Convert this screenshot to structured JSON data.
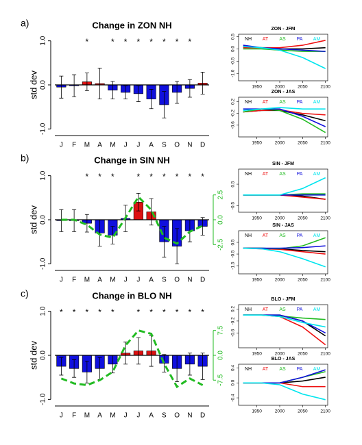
{
  "chart_data": [
    {
      "type": "bar",
      "panel": "a)",
      "title": "Change in ZON NH",
      "ylabel": "std dev",
      "categories": [
        "J",
        "F",
        "M",
        "A",
        "M",
        "J",
        "J",
        "A",
        "S",
        "O",
        "N",
        "D"
      ],
      "values": [
        -0.05,
        -0.02,
        0.07,
        0.03,
        -0.12,
        -0.17,
        -0.2,
        -0.32,
        -0.45,
        -0.17,
        -0.08,
        0.04
      ],
      "errors": [
        0.25,
        0.25,
        0.2,
        0.35,
        0.2,
        0.15,
        0.18,
        0.22,
        0.3,
        0.25,
        0.2,
        0.25
      ],
      "colors": [
        "#1010dd",
        "#1010dd",
        "#dd1111",
        "#dd1111",
        "#1010dd",
        "#1010dd",
        "#1010dd",
        "#1010dd",
        "#1010dd",
        "#1010dd",
        "#1010dd",
        "#dd1111"
      ],
      "annotations": [
        null,
        null,
        "*",
        null,
        "*",
        "*",
        "*",
        "*",
        "*",
        "*",
        "*",
        null
      ],
      "ylim": [
        -1.15,
        1.15
      ],
      "yticks": [
        {
          "value": 1,
          "label": "1.0"
        },
        {
          "value": 0,
          "label": "0.0"
        },
        {
          "value": -1,
          "label": "-1.0"
        }
      ]
    },
    {
      "type": "lines",
      "title": "ZON - JFM",
      "x": [
        1920,
        1960,
        2000,
        2050,
        2100
      ],
      "xlim": [
        1910,
        2105
      ],
      "xticks": [
        1950,
        2000,
        2050,
        2100
      ],
      "ylim": [
        -1.3,
        0.6
      ],
      "yticks": [
        {
          "value": 0.5,
          "label": "0.5"
        },
        {
          "value": 0,
          "label": "0.0"
        },
        {
          "value": -0.5,
          "label": "-0.5"
        },
        {
          "value": -1,
          "label": "-1.0"
        }
      ],
      "series": [
        {
          "name": "NH",
          "color": "#000000",
          "values": [
            0.1,
            0.05,
            0,
            0,
            0.05
          ]
        },
        {
          "name": "AT",
          "color": "#ee1111",
          "values": [
            0.05,
            0.05,
            0.05,
            0.15,
            0.35
          ]
        },
        {
          "name": "AS",
          "color": "#22bb22",
          "values": [
            0,
            0,
            -0.05,
            -0.1,
            -0.1
          ]
        },
        {
          "name": "PA",
          "color": "#1111dd",
          "values": [
            0.15,
            0.05,
            0,
            -0.05,
            -0.1
          ]
        },
        {
          "name": "AM",
          "color": "#00e5ee",
          "values": [
            0.1,
            0.05,
            -0.05,
            -0.35,
            -0.8
          ]
        }
      ]
    },
    {
      "type": "lines",
      "title": "ZON - JAS",
      "x": [
        1920,
        1960,
        2000,
        2050,
        2100
      ],
      "xlim": [
        1910,
        2105
      ],
      "xticks": [
        1950,
        2000,
        2050,
        2100
      ],
      "ylim": [
        -1.0,
        0.35
      ],
      "yticks": [
        {
          "value": 0.2,
          "label": "0.2"
        },
        {
          "value": -0.2,
          "label": "-0.2"
        },
        {
          "value": -0.6,
          "label": "-0.6"
        }
      ],
      "series": [
        {
          "name": "NH",
          "color": "#000000",
          "values": [
            -0.15,
            -0.1,
            -0.1,
            -0.25,
            -0.45
          ]
        },
        {
          "name": "AT",
          "color": "#ee1111",
          "values": [
            -0.15,
            -0.1,
            -0.08,
            -0.2,
            -0.25
          ]
        },
        {
          "name": "AS",
          "color": "#22bb22",
          "values": [
            -0.15,
            -0.05,
            -0.1,
            -0.4,
            -0.85
          ]
        },
        {
          "name": "PA",
          "color": "#1111dd",
          "values": [
            -0.05,
            -0.05,
            -0.05,
            -0.3,
            -0.65
          ]
        },
        {
          "name": "AM",
          "color": "#00e5ee",
          "values": [
            -0.1,
            -0.05,
            0,
            -0.05,
            -0.05
          ]
        }
      ]
    },
    {
      "type": "bar",
      "panel": "b)",
      "title": "Change in SIN NH",
      "ylabel": "std dev",
      "categories": [
        "J",
        "F",
        "M",
        "A",
        "M",
        "J",
        "J",
        "A",
        "S",
        "O",
        "N",
        "D"
      ],
      "values": [
        -0.02,
        -0.02,
        -0.08,
        -0.3,
        -0.35,
        0.03,
        0.4,
        0.18,
        -0.5,
        -0.6,
        -0.25,
        -0.15
      ],
      "errors": [
        0.25,
        0.25,
        0.2,
        0.3,
        0.2,
        0.3,
        0.2,
        0.3,
        0.35,
        0.4,
        0.25,
        0.2
      ],
      "colors": [
        "#1010dd",
        "#1010dd",
        "#1010dd",
        "#1010dd",
        "#1010dd",
        "#1010dd",
        "#dd1111",
        "#dd1111",
        "#1010dd",
        "#1010dd",
        "#1010dd",
        "#1010dd"
      ],
      "annotations": [
        null,
        null,
        "*",
        "*",
        "*",
        null,
        "*",
        "*",
        "*",
        "*",
        "*",
        "*"
      ],
      "ylim": [
        -1.15,
        1.15
      ],
      "yticks": [
        {
          "value": 1,
          "label": "1.0"
        },
        {
          "value": 0,
          "label": "0.0"
        },
        {
          "value": -1,
          "label": "-1.0"
        }
      ],
      "line": {
        "color": "#22bb22",
        "axis": "y2",
        "values": [
          0,
          0,
          -0.5,
          -1.5,
          -1.8,
          0.2,
          2.3,
          1.0,
          -1.8,
          -2.4,
          -1.2,
          -0.6
        ]
      },
      "y2lim": [
        -5.1,
        5.1
      ],
      "y2ticks": [
        {
          "value": 2.5,
          "label": "2.5"
        },
        {
          "value": 0,
          "label": "0.0"
        },
        {
          "value": -2.5,
          "label": "-2.5"
        }
      ]
    },
    {
      "type": "lines",
      "title": "SIN - JFM",
      "x": [
        1920,
        1960,
        2000,
        2050,
        2100
      ],
      "xlim": [
        1910,
        2105
      ],
      "xticks": [
        1950,
        2000,
        2050,
        2100
      ],
      "ylim": [
        -0.8,
        1.2
      ],
      "yticks": [
        {
          "value": 0.5,
          "label": "0.5"
        },
        {
          "value": -0.5,
          "label": "-0.5"
        }
      ],
      "series": [
        {
          "name": "NH",
          "color": "#000000",
          "values": [
            0,
            0,
            0,
            -0.05,
            -0.2
          ]
        },
        {
          "name": "AT",
          "color": "#ee1111",
          "values": [
            0,
            0,
            0,
            -0.1,
            -0.2
          ]
        },
        {
          "name": "AS",
          "color": "#22bb22",
          "values": [
            0,
            0,
            0,
            0.05,
            0.05
          ]
        },
        {
          "name": "PA",
          "color": "#1111dd",
          "values": [
            0,
            0,
            0,
            0,
            0
          ]
        },
        {
          "name": "AM",
          "color": "#00e5ee",
          "values": [
            0,
            0,
            0,
            0.3,
            0.8
          ]
        }
      ]
    },
    {
      "type": "lines",
      "title": "SIN - JAS",
      "x": [
        1920,
        1960,
        2000,
        2050,
        2100
      ],
      "xlim": [
        1910,
        2105
      ],
      "xticks": [
        1950,
        2000,
        2050,
        2100
      ],
      "ylim": [
        -2.2,
        1.5
      ],
      "yticks": [
        {
          "value": 0.5,
          "label": "0.5"
        },
        {
          "value": -0.5,
          "label": "-0.5"
        },
        {
          "value": -1.5,
          "label": "-1.5"
        }
      ],
      "series": [
        {
          "name": "NH",
          "color": "#000000",
          "values": [
            0,
            0,
            -0.05,
            -0.2,
            -0.3
          ]
        },
        {
          "name": "AT",
          "color": "#ee1111",
          "values": [
            0,
            -0.05,
            -0.1,
            -0.3,
            -0.5
          ]
        },
        {
          "name": "AS",
          "color": "#22bb22",
          "values": [
            0,
            0,
            -0.05,
            0.2,
            0.9
          ]
        },
        {
          "name": "PA",
          "color": "#1111dd",
          "values": [
            0,
            0,
            0,
            0.05,
            0.2
          ]
        },
        {
          "name": "AM",
          "color": "#00e5ee",
          "values": [
            0,
            -0.05,
            -0.3,
            -0.9,
            -1.6
          ]
        }
      ]
    },
    {
      "type": "bar",
      "panel": "c)",
      "title": "Change in BLO NH",
      "ylabel": "std dev",
      "categories": [
        "J",
        "F",
        "M",
        "A",
        "M",
        "J",
        "J",
        "A",
        "S",
        "O",
        "N",
        "D"
      ],
      "values": [
        -0.25,
        -0.3,
        -0.38,
        -0.3,
        -0.2,
        0.05,
        0.1,
        0.1,
        -0.18,
        -0.3,
        -0.2,
        -0.25
      ],
      "errors": [
        0.2,
        0.2,
        0.25,
        0.25,
        0.2,
        0.25,
        0.3,
        0.35,
        0.2,
        0.3,
        0.25,
        0.3
      ],
      "colors": [
        "#1010dd",
        "#1010dd",
        "#1010dd",
        "#1010dd",
        "#1010dd",
        "#dd1111",
        "#dd1111",
        "#dd1111",
        "#1010dd",
        "#1010dd",
        "#1010dd",
        "#1010dd"
      ],
      "annotations": [
        "*",
        "*",
        "*",
        "*",
        "*",
        null,
        "*",
        "*",
        "*",
        "*",
        "*",
        "*"
      ],
      "ylim": [
        -1.15,
        1.15
      ],
      "yticks": [
        {
          "value": 1,
          "label": "1.0"
        },
        {
          "value": 0,
          "label": "0.0"
        },
        {
          "value": -1,
          "label": "-1.0"
        }
      ],
      "line": {
        "color": "#22bb22",
        "axis": "y2",
        "values": [
          -7,
          -8.5,
          -9,
          -7.5,
          -5,
          3,
          7.5,
          6.5,
          -2.5,
          -9.5,
          -7,
          -9
        ]
      },
      "y2lim": [
        -15.3,
        15.3
      ],
      "y2ticks": [
        {
          "value": 7.5,
          "label": "7.5"
        },
        {
          "value": 0,
          "label": "0.0"
        },
        {
          "value": -7.5,
          "label": "-7.5"
        }
      ]
    },
    {
      "type": "lines",
      "title": "BLO - JFM",
      "x": [
        1920,
        1960,
        2000,
        2050,
        2100
      ],
      "xlim": [
        1910,
        2105
      ],
      "xticks": [
        1950,
        2000,
        2050,
        2100
      ],
      "ylim": [
        -1.1,
        0.35
      ],
      "yticks": [
        {
          "value": 0.2,
          "label": "0.2"
        },
        {
          "value": -0.2,
          "label": "-0.2"
        },
        {
          "value": -0.6,
          "label": "-0.6"
        }
      ],
      "series": [
        {
          "name": "NH",
          "color": "#000000",
          "values": [
            0,
            0,
            0,
            -0.2,
            -0.7
          ]
        },
        {
          "name": "AT",
          "color": "#ee1111",
          "values": [
            0,
            0,
            -0.05,
            -0.4,
            -1.0
          ]
        },
        {
          "name": "AS",
          "color": "#22bb22",
          "values": [
            0,
            0,
            -0.03,
            -0.1,
            -0.15
          ]
        },
        {
          "name": "PA",
          "color": "#1111dd",
          "values": [
            0,
            0,
            0,
            -0.2,
            -0.6
          ]
        },
        {
          "name": "AM",
          "color": "#00e5ee",
          "values": [
            0,
            0,
            -0.05,
            -0.25,
            -0.4
          ]
        }
      ]
    },
    {
      "type": "lines",
      "title": "BLO - JAS",
      "x": [
        1920,
        1960,
        2000,
        2050,
        2100
      ],
      "xlim": [
        1910,
        2105
      ],
      "xticks": [
        1950,
        2000,
        2050,
        2100
      ],
      "ylim": [
        -0.6,
        0.5
      ],
      "yticks": [
        {
          "value": 0.4,
          "label": "0.4"
        },
        {
          "value": 0,
          "label": "0.0"
        },
        {
          "value": -0.4,
          "label": "-0.4"
        }
      ],
      "series": [
        {
          "name": "NH",
          "color": "#000000",
          "values": [
            0,
            0,
            0,
            0.05,
            0.15
          ]
        },
        {
          "name": "AT",
          "color": "#ee1111",
          "values": [
            0,
            0,
            0,
            -0.1,
            -0.1
          ]
        },
        {
          "name": "AS",
          "color": "#22bb22",
          "values": [
            0,
            0,
            0,
            0.15,
            0.3
          ]
        },
        {
          "name": "PA",
          "color": "#1111dd",
          "values": [
            0,
            0,
            0,
            0.15,
            0.35
          ]
        },
        {
          "name": "AM",
          "color": "#00e5ee",
          "values": [
            0,
            0,
            -0.05,
            -0.3,
            -0.45
          ]
        }
      ]
    }
  ]
}
